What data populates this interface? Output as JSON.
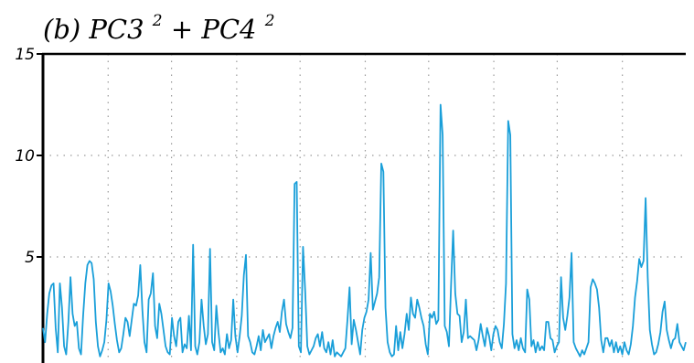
{
  "chart_data": {
    "type": "line",
    "title_parts": [
      "(b) PC3",
      "2",
      "+ PC4",
      "2"
    ],
    "xlabel": "",
    "ylabel": "",
    "x_range": [
      0,
      365
    ],
    "ylim": [
      0,
      15
    ],
    "yticks": [
      5,
      10,
      15
    ],
    "x_grid_positions": [
      37,
      73,
      110,
      146,
      183,
      219,
      256,
      292,
      329
    ],
    "grid": true,
    "line_color": "#1a9fd9",
    "series": [
      {
        "values": [
          1.5,
          0.8,
          2.2,
          3.2,
          3.6,
          3.7,
          1.5,
          0.3,
          3.7,
          2.5,
          0.6,
          0.2,
          1.8,
          4.0,
          2.2,
          1.6,
          1.8,
          0.5,
          0.2,
          2.1,
          3.7,
          4.6,
          4.8,
          4.7,
          3.9,
          1.8,
          0.6,
          0.1,
          0.4,
          0.8,
          1.9,
          3.7,
          3.3,
          2.6,
          1.7,
          0.9,
          0.3,
          0.5,
          1.2,
          2.0,
          1.8,
          1.1,
          1.9,
          2.7,
          2.6,
          3.1,
          4.6,
          2.4,
          0.8,
          0.3,
          2.9,
          3.2,
          4.2,
          1.6,
          1.0,
          2.7,
          2.2,
          1.4,
          0.6,
          0.3,
          0.2,
          2.0,
          1.1,
          0.6,
          1.8,
          2.0,
          0.3,
          0.7,
          0.5,
          2.1,
          0.4,
          5.6,
          0.6,
          0.2,
          0.8,
          2.9,
          1.6,
          0.7,
          1.2,
          5.4,
          0.8,
          0.4,
          2.6,
          1.3,
          0.3,
          0.5,
          0.2,
          1.2,
          0.5,
          0.9,
          2.9,
          1.1,
          0.3,
          1.1,
          2.1,
          4.1,
          5.1,
          1.1,
          0.8,
          0.3,
          0.2,
          0.6,
          1.1,
          0.4,
          1.4,
          0.8,
          1.0,
          1.2,
          0.5,
          1.1,
          1.5,
          1.8,
          1.3,
          2.3,
          2.9,
          1.7,
          1.3,
          1.0,
          1.5,
          8.6,
          8.7,
          0.6,
          0.3,
          5.5,
          3.3,
          0.6,
          0.2,
          0.4,
          0.6,
          1.0,
          1.2,
          0.6,
          1.3,
          0.5,
          0.3,
          0.8,
          0.2,
          0.9,
          0.1,
          0.3,
          0.2,
          0.1,
          0.3,
          0.5,
          1.9,
          3.5,
          0.7,
          1.9,
          1.4,
          0.8,
          0.2,
          1.4,
          2.0,
          2.3,
          2.9,
          5.2,
          2.4,
          2.8,
          3.2,
          4.0,
          9.6,
          9.2,
          2.5,
          0.8,
          0.3,
          0.1,
          0.2,
          1.6,
          0.4,
          1.3,
          0.5,
          1.2,
          2.2,
          1.4,
          3.0,
          2.2,
          2.0,
          2.9,
          2.5,
          2.0,
          1.6,
          0.7,
          0.2,
          2.2,
          2.0,
          2.3,
          1.7,
          1.9,
          12.5,
          11.0,
          1.6,
          1.3,
          0.6,
          3.6,
          6.3,
          3.2,
          2.2,
          2.1,
          0.8,
          1.3,
          2.9,
          1.0,
          1.1,
          1.0,
          0.9,
          0.4,
          0.9,
          1.7,
          1.1,
          0.6,
          1.5,
          1.1,
          0.4,
          1.2,
          1.6,
          1.4,
          0.8,
          0.5,
          1.7,
          3.7,
          11.7,
          11.0,
          1.2,
          0.5,
          0.9,
          0.4,
          1.0,
          0.5,
          0.3,
          3.4,
          2.9,
          0.6,
          0.9,
          0.3,
          0.8,
          0.4,
          0.6,
          0.4,
          1.8,
          1.8,
          1.0,
          0.9,
          0.3,
          0.6,
          0.8,
          4.0,
          2.0,
          1.4,
          2.1,
          3.0,
          5.2,
          0.8,
          0.5,
          0.3,
          0.1,
          0.4,
          0.2,
          0.5,
          0.8,
          3.5,
          3.9,
          3.7,
          3.4,
          2.5,
          0.9,
          0.3,
          1.0,
          1.0,
          0.6,
          0.9,
          0.3,
          0.8,
          0.3,
          0.6,
          0.2,
          0.8,
          0.4,
          0.2,
          0.7,
          1.6,
          3.0,
          3.8,
          4.9,
          4.5,
          4.8,
          7.9,
          4.0,
          1.4,
          0.7,
          0.2,
          0.3,
          0.7,
          1.3,
          2.3,
          2.8,
          1.4,
          0.9,
          0.5,
          0.9,
          1.0,
          1.7,
          0.8,
          0.6,
          0.4,
          0.8
        ]
      }
    ]
  }
}
